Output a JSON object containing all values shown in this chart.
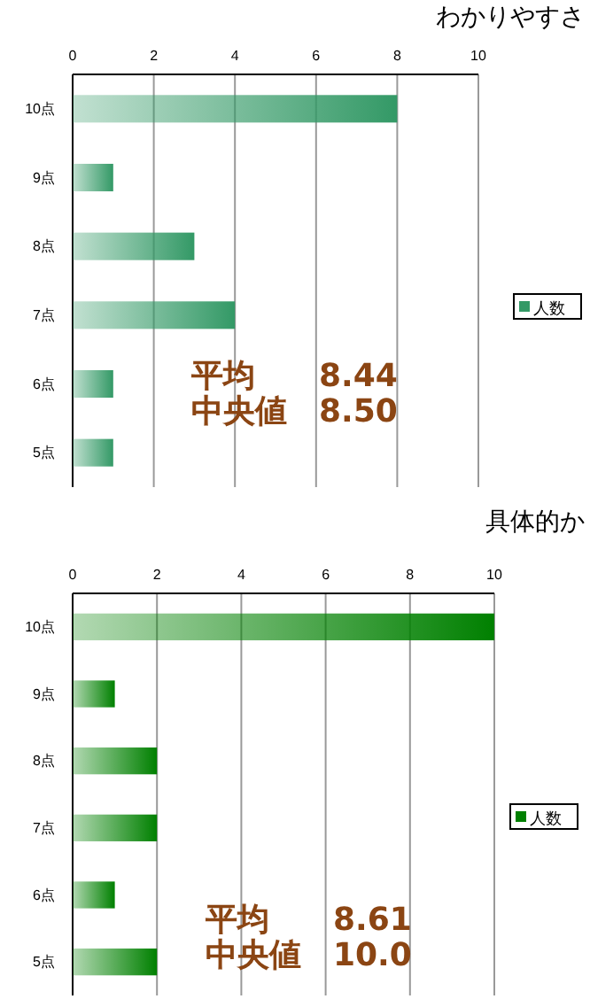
{
  "chart_data": [
    {
      "type": "bar",
      "orientation": "horizontal",
      "title": "わかりやすさ",
      "categories": [
        "10点",
        "9点",
        "8点",
        "7点",
        "6点",
        "5点"
      ],
      "series": [
        {
          "name": "人数",
          "color": "#339966",
          "values": [
            8,
            1,
            3,
            4,
            1,
            1
          ]
        }
      ],
      "xlim": [
        0,
        10
      ],
      "xticks": [
        0,
        2,
        4,
        6,
        8,
        10
      ],
      "grid": "x",
      "legend": "right",
      "annotations": [
        "平均　　8.44",
        "中央値　8.50"
      ]
    },
    {
      "type": "bar",
      "orientation": "horizontal",
      "title": "具体的か",
      "categories": [
        "10点",
        "9点",
        "8点",
        "7点",
        "6点",
        "5点"
      ],
      "series": [
        {
          "name": "人数",
          "color": "#008000",
          "values": [
            10,
            1,
            2,
            2,
            1,
            2
          ]
        }
      ],
      "xlim": [
        0,
        10
      ],
      "xticks": [
        0,
        2,
        4,
        6,
        8,
        10
      ],
      "grid": "x",
      "legend": "right",
      "annotations": [
        "平均　　8.61",
        "中央値　10.0"
      ]
    }
  ]
}
